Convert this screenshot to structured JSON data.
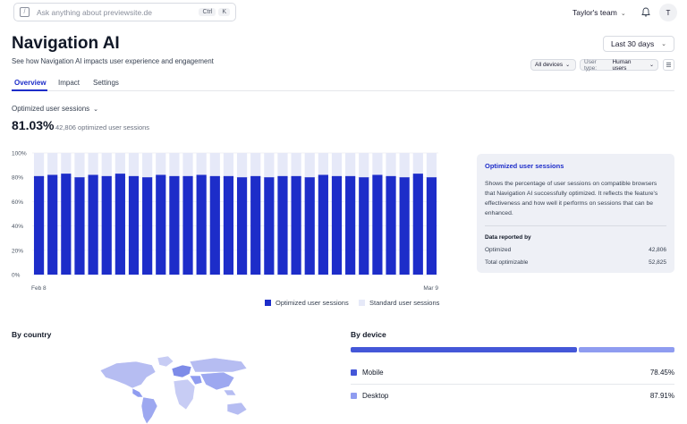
{
  "search": {
    "placeholder": "Ask anything about previewsite.de",
    "shortcut_ctrl": "Ctrl",
    "shortcut_key": "K"
  },
  "header": {
    "team": "Taylor's team",
    "avatar_initial": "T"
  },
  "page": {
    "title": "Navigation AI",
    "subtitle": "See how Navigation AI impacts user experience and engagement"
  },
  "controls": {
    "date_range": "Last 30 days",
    "devices_filter": "All devices",
    "user_type_label": "User type:",
    "user_type_value": "Human users"
  },
  "tabs": [
    {
      "label": "Overview",
      "active": true
    },
    {
      "label": "Impact",
      "active": false
    },
    {
      "label": "Settings",
      "active": false
    }
  ],
  "metric": {
    "selector_label": "Optimized user sessions",
    "value": "81.03%",
    "subtext": "42,806 optimized user sessions"
  },
  "chart_data": {
    "type": "bar",
    "stacked_percent": true,
    "y_ticks": [
      "100%",
      "80%",
      "60%",
      "40%",
      "20%",
      "0%"
    ],
    "ylim": [
      0,
      100
    ],
    "x_start_label": "Feb 8",
    "x_end_label": "Mar 9",
    "series": [
      {
        "name": "Optimized user sessions",
        "color": "#1d2dc9",
        "values": [
          81,
          82,
          83,
          80,
          82,
          81,
          83,
          81,
          80,
          82,
          81,
          81,
          82,
          81,
          81,
          80,
          81,
          80,
          81,
          81,
          80,
          82,
          81,
          81,
          80,
          82,
          81,
          80,
          83,
          80
        ]
      },
      {
        "name": "Standard user sessions",
        "color": "#eef0fb",
        "values": [
          19,
          18,
          17,
          20,
          18,
          19,
          17,
          19,
          20,
          18,
          19,
          19,
          18,
          19,
          19,
          20,
          19,
          20,
          19,
          19,
          20,
          18,
          19,
          19,
          20,
          18,
          19,
          20,
          17,
          20
        ]
      }
    ]
  },
  "info_card": {
    "title": "Optimized user sessions",
    "body": "Shows the percentage of user sessions on compatible browsers that Navigation AI successfully optimized. It reflects the feature's effectiveness and how well it performs on sessions that can be enhanced.",
    "reported_by": "Data reported by",
    "rows": [
      {
        "label": "Optimized",
        "value": "42,806"
      },
      {
        "label": "Total optimizable",
        "value": "52,825"
      }
    ]
  },
  "by_country": {
    "title": "By country"
  },
  "by_device": {
    "title": "By device",
    "items": [
      {
        "label": "Mobile",
        "value": "78.45%",
        "color": "#4457d8"
      },
      {
        "label": "Desktop",
        "value": "87.91%",
        "color": "#8f9cf0"
      }
    ]
  }
}
